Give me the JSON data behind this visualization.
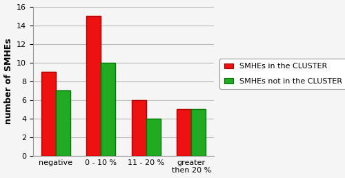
{
  "categories": [
    "negative",
    "0 - 10 %",
    "11 - 20 %",
    "greater\nthen 20 %"
  ],
  "cluster_values": [
    9,
    15,
    6,
    5
  ],
  "not_cluster_values": [
    7,
    10,
    4,
    5
  ],
  "cluster_color": "#EE1111",
  "not_cluster_color": "#22AA22",
  "cluster_color_dark": "#AA0000",
  "not_cluster_color_dark": "#007700",
  "ylabel": "number of SMHEs",
  "ylim": [
    0,
    16
  ],
  "yticks": [
    0,
    2,
    4,
    6,
    8,
    10,
    12,
    14,
    16
  ],
  "legend_cluster": "SMHEs in the CLUSTER",
  "legend_not_cluster": "SMHEs not in the CLUSTER",
  "bar_width": 0.32,
  "background_color": "#f5f5f5",
  "grid_color": "#bbbbbb",
  "ylabel_fontsize": 9,
  "tick_fontsize": 8,
  "legend_fontsize": 8
}
